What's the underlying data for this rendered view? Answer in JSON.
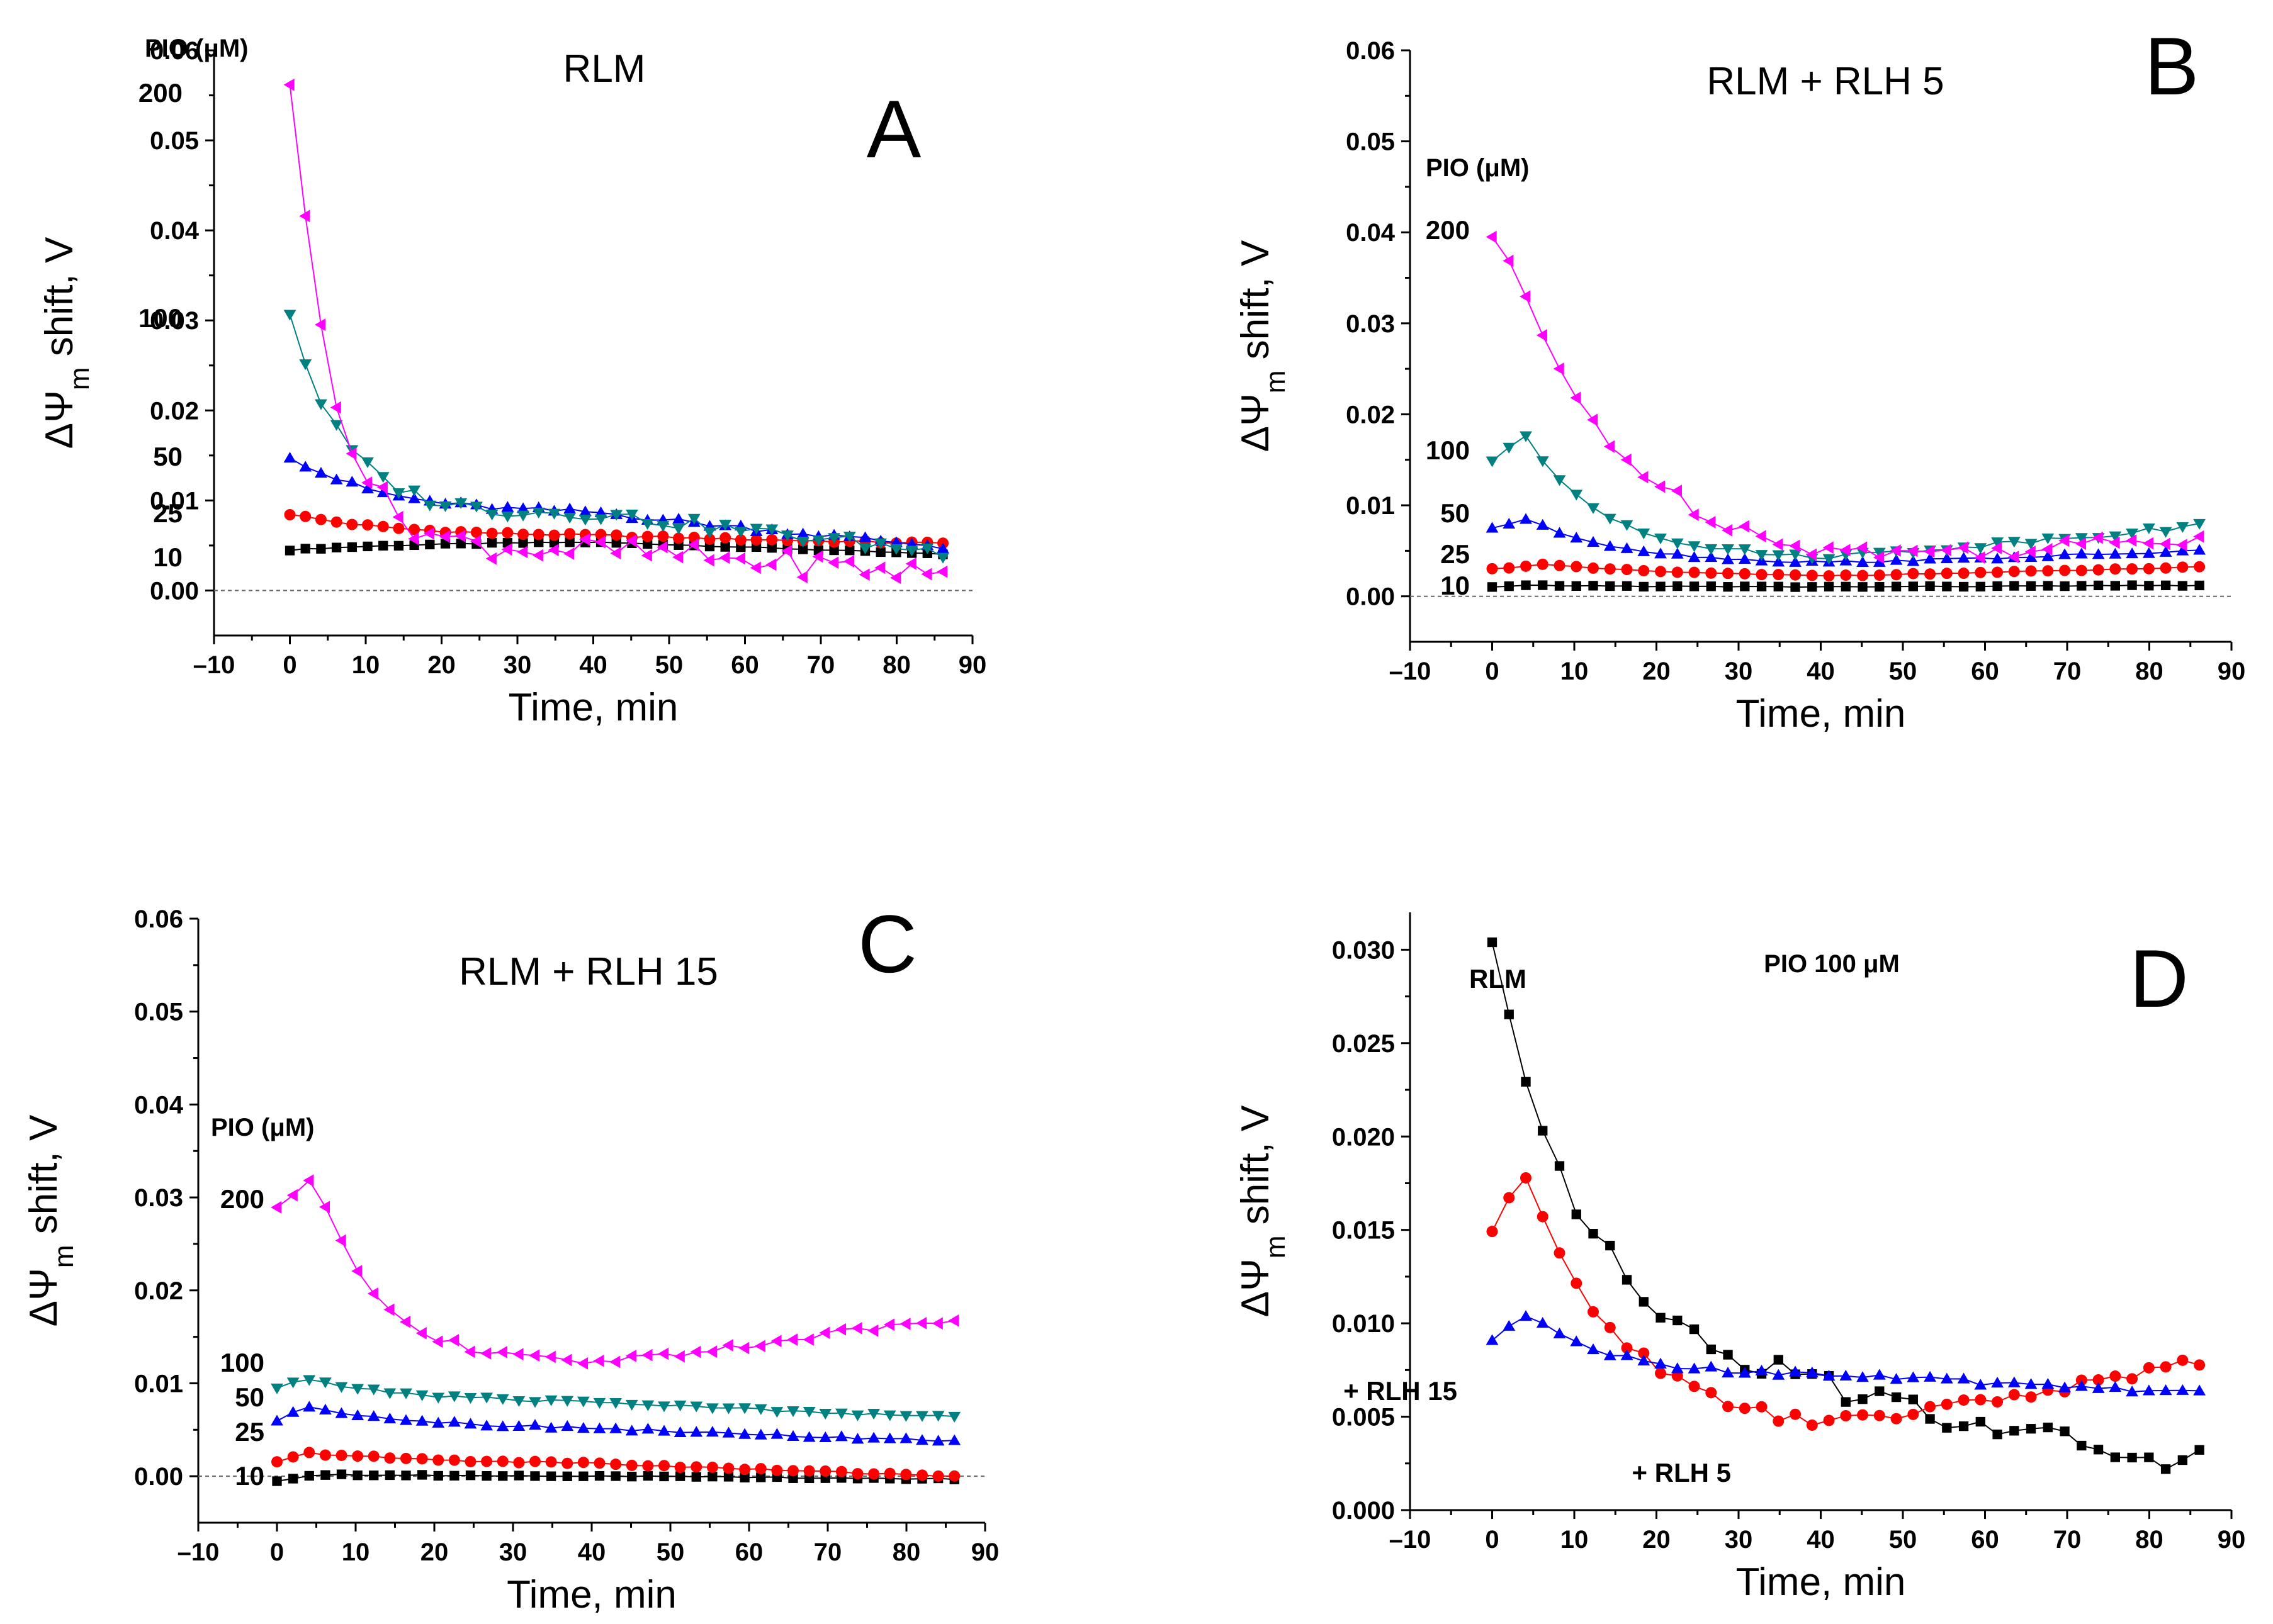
{
  "chart_data": [
    {
      "type": "scatter",
      "panel_letter": "A",
      "title": "RLM",
      "xlabel": "Time, min",
      "ylabel_main": "ΔΨ",
      "ylabel_sub": "m",
      "ylabel_tail": " shift, V",
      "xlim": [
        -10,
        90
      ],
      "ylim": [
        -0.005,
        0.06
      ],
      "xticks": [
        "–10",
        "0",
        "10",
        "20",
        "30",
        "40",
        "50",
        "60",
        "70",
        "80",
        "90"
      ],
      "yticks": [
        "0.00",
        "0.01",
        "0.02",
        "0.03",
        "0.04",
        "0.05",
        "0.06"
      ],
      "legend_title": "PIO (μM)",
      "series": [
        {
          "name": "10",
          "label": "10",
          "color": "#000000",
          "marker": "square",
          "start": 0.0045,
          "peak": 0.0045,
          "peak_t": 0,
          "plateau": 0.0055,
          "end": 0.004,
          "tau": 20
        },
        {
          "name": "25",
          "label": "25",
          "color": "#ff0000",
          "marker": "circle",
          "start": 0.0085,
          "peak": 0.0085,
          "peak_t": 0,
          "plateau": 0.006,
          "end": 0.0052,
          "tau": 14
        },
        {
          "name": "50",
          "label": "50",
          "color": "#0000ff",
          "marker": "triangle-up",
          "start": 0.015,
          "peak": 0.015,
          "peak_t": 0,
          "plateau": 0.0085,
          "end": 0.0048,
          "tau": 12
        },
        {
          "name": "100",
          "label": "100",
          "color": "#008080",
          "marker": "triangle-down",
          "start": 0.031,
          "peak": 0.031,
          "peak_t": 0,
          "plateau": 0.0085,
          "end": 0.0042,
          "tau": 7
        },
        {
          "name": "200",
          "label": "200",
          "color": "#ff00ff",
          "marker": "triangle-left",
          "start": 0.057,
          "peak": 0.057,
          "peak_t": 0,
          "plateau": 0.0045,
          "end": 0.0018,
          "tau": 5.5
        }
      ]
    },
    {
      "type": "scatter",
      "panel_letter": "B",
      "title": "RLM + RLH 5",
      "xlabel": "Time, min",
      "ylabel_main": "ΔΨ",
      "ylabel_sub": "m",
      "ylabel_tail": " shift, V",
      "xlim": [
        -10,
        90
      ],
      "ylim": [
        -0.005,
        0.06
      ],
      "xticks": [
        "–10",
        "0",
        "10",
        "20",
        "30",
        "40",
        "50",
        "60",
        "70",
        "80",
        "90"
      ],
      "yticks": [
        "0.00",
        "0.01",
        "0.02",
        "0.03",
        "0.04",
        "0.05",
        "0.06"
      ],
      "legend_title": "PIO (μM)",
      "series": [
        {
          "name": "10",
          "label": "10",
          "color": "#000000",
          "marker": "square",
          "start": 0.001,
          "peak": 0.0012,
          "peak_t": 5,
          "plateau": 0.001,
          "end": 0.0012,
          "tau": 20
        },
        {
          "name": "25",
          "label": "25",
          "color": "#ff0000",
          "marker": "circle",
          "start": 0.003,
          "peak": 0.0035,
          "peak_t": 6,
          "plateau": 0.002,
          "end": 0.0032,
          "tau": 20
        },
        {
          "name": "50",
          "label": "50",
          "color": "#0000ff",
          "marker": "triangle-up",
          "start": 0.0075,
          "peak": 0.0085,
          "peak_t": 4,
          "plateau": 0.0035,
          "end": 0.005,
          "tau": 12
        },
        {
          "name": "100",
          "label": "100",
          "color": "#008080",
          "marker": "triangle-down",
          "start": 0.015,
          "peak": 0.0175,
          "peak_t": 4,
          "plateau": 0.004,
          "end": 0.0078,
          "tau": 10
        },
        {
          "name": "200",
          "label": "200",
          "color": "#ff00ff",
          "marker": "triangle-left",
          "start": 0.0395,
          "peak": 0.0395,
          "peak_t": 1,
          "plateau": 0.003,
          "end": 0.0065,
          "tau": 14
        }
      ]
    },
    {
      "type": "scatter",
      "panel_letter": "C",
      "title": "RLM + RLH 15",
      "xlabel": "Time, min",
      "ylabel_main": "ΔΨ",
      "ylabel_sub": "m",
      "ylabel_tail": " shift, V",
      "xlim": [
        -10,
        90
      ],
      "ylim": [
        -0.005,
        0.06
      ],
      "xticks": [
        "–10",
        "0",
        "10",
        "20",
        "30",
        "40",
        "50",
        "60",
        "70",
        "80",
        "90"
      ],
      "yticks": [
        "0.00",
        "0.01",
        "0.02",
        "0.03",
        "0.04",
        "0.05",
        "0.06"
      ],
      "legend_title": "PIO (μM)",
      "series": [
        {
          "name": "10",
          "label": "10",
          "color": "#000000",
          "marker": "square",
          "start": -0.0005,
          "peak": 0.0002,
          "peak_t": 5,
          "plateau": 0.0,
          "end": -0.0003,
          "tau": 20
        },
        {
          "name": "25",
          "label": "25",
          "color": "#ff0000",
          "marker": "circle",
          "start": 0.0015,
          "peak": 0.0025,
          "peak_t": 4,
          "plateau": 0.0012,
          "end": 0.0,
          "tau": 20
        },
        {
          "name": "50",
          "label": "50",
          "color": "#0000ff",
          "marker": "triangle-up",
          "start": 0.006,
          "peak": 0.0075,
          "peak_t": 4,
          "plateau": 0.005,
          "end": 0.0037,
          "tau": 15
        },
        {
          "name": "100",
          "label": "100",
          "color": "#008080",
          "marker": "triangle-down",
          "start": 0.0095,
          "peak": 0.0105,
          "peak_t": 3,
          "plateau": 0.0078,
          "end": 0.0063,
          "tau": 15
        },
        {
          "name": "200",
          "label": "200",
          "color": "#ff00ff",
          "marker": "triangle-left",
          "start": 0.029,
          "peak": 0.032,
          "peak_t": 5,
          "plateau": 0.012,
          "end": 0.017,
          "tau": 8
        }
      ]
    },
    {
      "type": "scatter",
      "panel_letter": "D",
      "title": "PIO 100 μM",
      "xlabel": "Time, min",
      "ylabel_main": "ΔΨ",
      "ylabel_sub": "m",
      "ylabel_tail": " shift, V",
      "xlim": [
        -10,
        90
      ],
      "ylim": [
        0.0,
        0.032
      ],
      "xticks": [
        "–10",
        "0",
        "10",
        "20",
        "30",
        "40",
        "50",
        "60",
        "70",
        "80",
        "90"
      ],
      "yticks": [
        "0.000",
        "0.005",
        "0.010",
        "0.015",
        "0.020",
        "0.025",
        "0.030"
      ],
      "series": [
        {
          "name": "RLM",
          "label": "RLM",
          "color": "#000000",
          "marker": "square",
          "start": 0.0307,
          "peak": 0.0307,
          "peak_t": 0,
          "plateau": 0.006,
          "end": 0.0025,
          "tau": 12
        },
        {
          "name": "+ RLH 5",
          "label": "+ RLH 5",
          "color": "#ff0000",
          "marker": "circle",
          "start": 0.015,
          "peak": 0.0178,
          "peak_t": 4,
          "plateau": 0.004,
          "end": 0.008,
          "tau": 12
        },
        {
          "name": "+ RLH 15",
          "label": "+ RLH 15",
          "color": "#0000ff",
          "marker": "triangle-up",
          "start": 0.009,
          "peak": 0.0105,
          "peak_t": 4,
          "plateau": 0.0072,
          "end": 0.0063,
          "tau": 10
        }
      ]
    }
  ]
}
